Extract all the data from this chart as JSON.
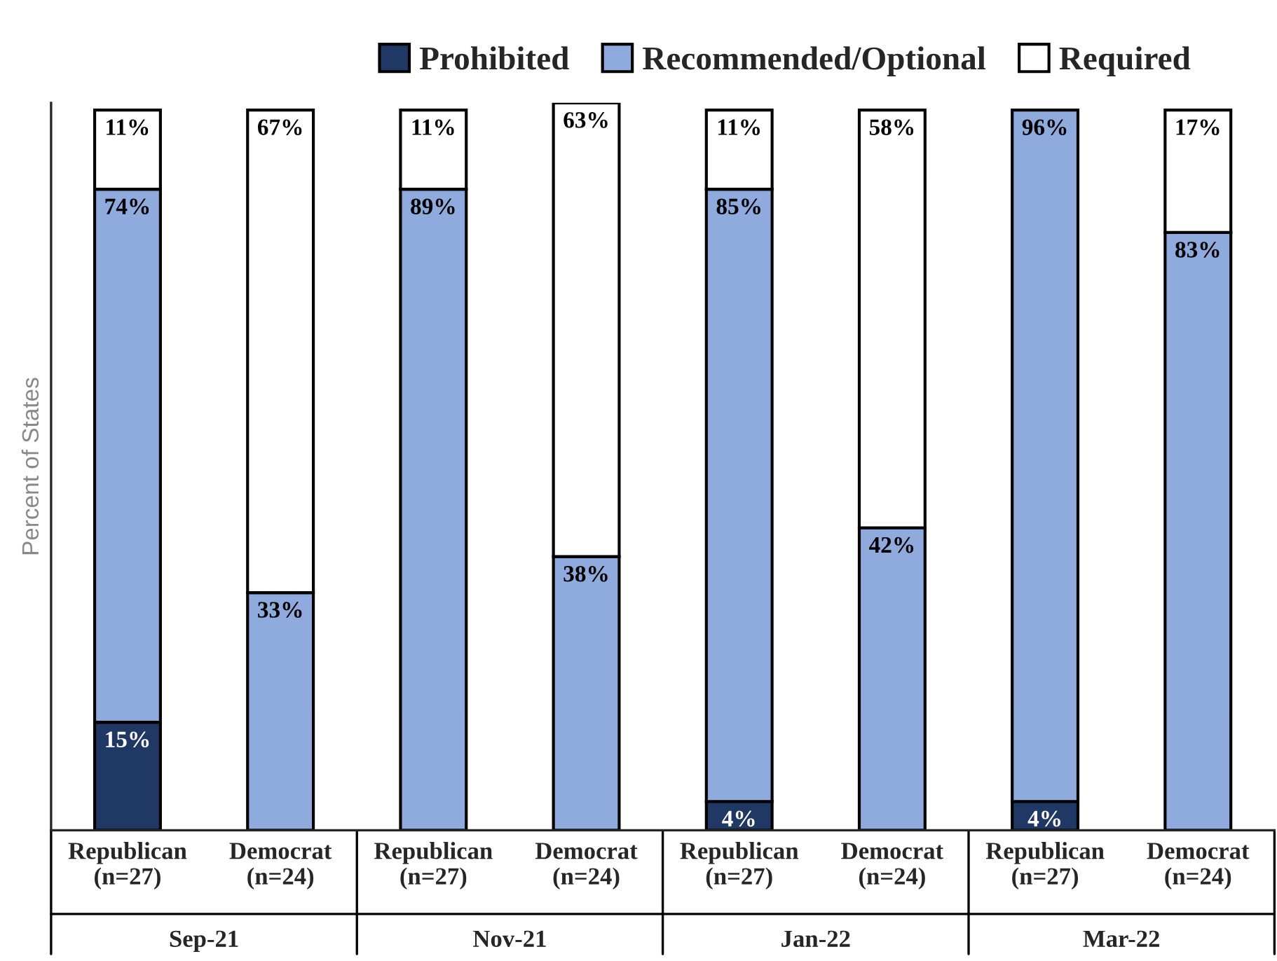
{
  "chart_data": {
    "type": "bar",
    "stacked": true,
    "ylabel": "Percent of States",
    "categories": [
      "Republican\n(n=27)",
      "Democrat\n(n=24)",
      "Republican\n(n=27)",
      "Democrat\n(n=24)",
      "Republican\n(n=27)",
      "Democrat\n(n=24)",
      "Republican\n(n=27)",
      "Democrat\n(n=24)"
    ],
    "series": [
      {
        "name": "Prohibited",
        "color": "#203864",
        "values": [
          15,
          null,
          null,
          null,
          4,
          null,
          4,
          null
        ],
        "value_labels": [
          "15%",
          null,
          null,
          null,
          "4%",
          null,
          "4%",
          null
        ]
      },
      {
        "name": "Recommended/Optional",
        "color": "#8faadc",
        "values": [
          74,
          33,
          89,
          38,
          85,
          42,
          96,
          83
        ],
        "value_labels": [
          "74%",
          "33%",
          "89%",
          "38%",
          "85%",
          "42%",
          "96%",
          "83%"
        ]
      },
      {
        "name": "Required",
        "color": "#ffffff",
        "values": [
          11,
          67,
          11,
          63,
          11,
          58,
          null,
          17
        ],
        "value_labels": [
          "11%",
          "67%",
          "11%",
          "63%",
          "11%",
          "58%",
          null,
          "17%"
        ]
      }
    ],
    "annotations": [
      "Sep-21",
      "Nov-21",
      "Jan-22",
      "Mar-22"
    ],
    "legend": "top",
    "grid": false
  }
}
